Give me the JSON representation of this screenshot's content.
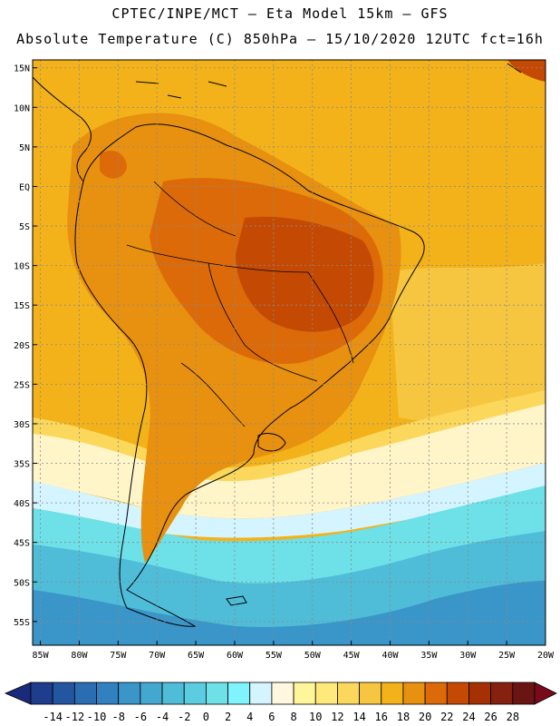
{
  "titles": {
    "line1": "CPTEC/INPE/MCT –  Eta Model 15km – GFS",
    "line2": "Absolute Temperature (C) 850hPa – 15/10/2020 12UTC fct=16h"
  },
  "map": {
    "lat_labels": [
      "15N",
      "10N",
      "5N",
      "EQ",
      "5S",
      "10S",
      "15S",
      "20S",
      "25S",
      "30S",
      "35S",
      "40S",
      "45S",
      "50S",
      "55S"
    ],
    "lat_values": [
      15,
      10,
      5,
      0,
      -5,
      -10,
      -15,
      -20,
      -25,
      -30,
      -35,
      -40,
      -45,
      -50,
      -55
    ],
    "lon_labels": [
      "85W",
      "80W",
      "75W",
      "70W",
      "65W",
      "60W",
      "55W",
      "50W",
      "45W",
      "40W",
      "35W",
      "30W",
      "25W",
      "20W"
    ],
    "lon_values": [
      -85,
      -80,
      -75,
      -70,
      -65,
      -60,
      -55,
      -50,
      -45,
      -40,
      -35,
      -30,
      -25,
      -20
    ],
    "lon_range": [
      -86,
      -20
    ],
    "lat_range": [
      -58,
      16
    ]
  },
  "colorbar": {
    "labels": [
      "-14",
      "-12",
      "-10",
      "-8",
      "-6",
      "-4",
      "-2",
      "0",
      "2",
      "4",
      "6",
      "8",
      "10",
      "12",
      "14",
      "16",
      "18",
      "20",
      "22",
      "24",
      "26",
      "28"
    ],
    "colors": [
      "#1f3d8c",
      "#2356a0",
      "#2a6db3",
      "#3181c0",
      "#3a95c8",
      "#43a8d0",
      "#4fbcd8",
      "#5ccde0",
      "#6ee0e8",
      "#7ff4ff",
      "#d4f4ff",
      "#fff7e0",
      "#fff59a",
      "#ffe97a",
      "#fbd85c",
      "#f7c640",
      "#f3b21a",
      "#e8900f",
      "#dc6a08",
      "#c44a04",
      "#a53003",
      "#862010",
      "#6b1414"
    ],
    "low_arrow_color": "#1a2a7a",
    "high_arrow_color": "#7a0a1a"
  },
  "field_colors": {
    "background": "#f3b21a",
    "hot": "#dc6a08",
    "hotter": "#c44a04",
    "warm": "#e8900f",
    "mild": "#f7c640",
    "cool": "#fbd85c",
    "cream": "#fff5c8",
    "pale": "#d4f4ff",
    "cyan": "#6ee0e8",
    "teal": "#4fbcd8",
    "blue": "#3a95c8"
  }
}
